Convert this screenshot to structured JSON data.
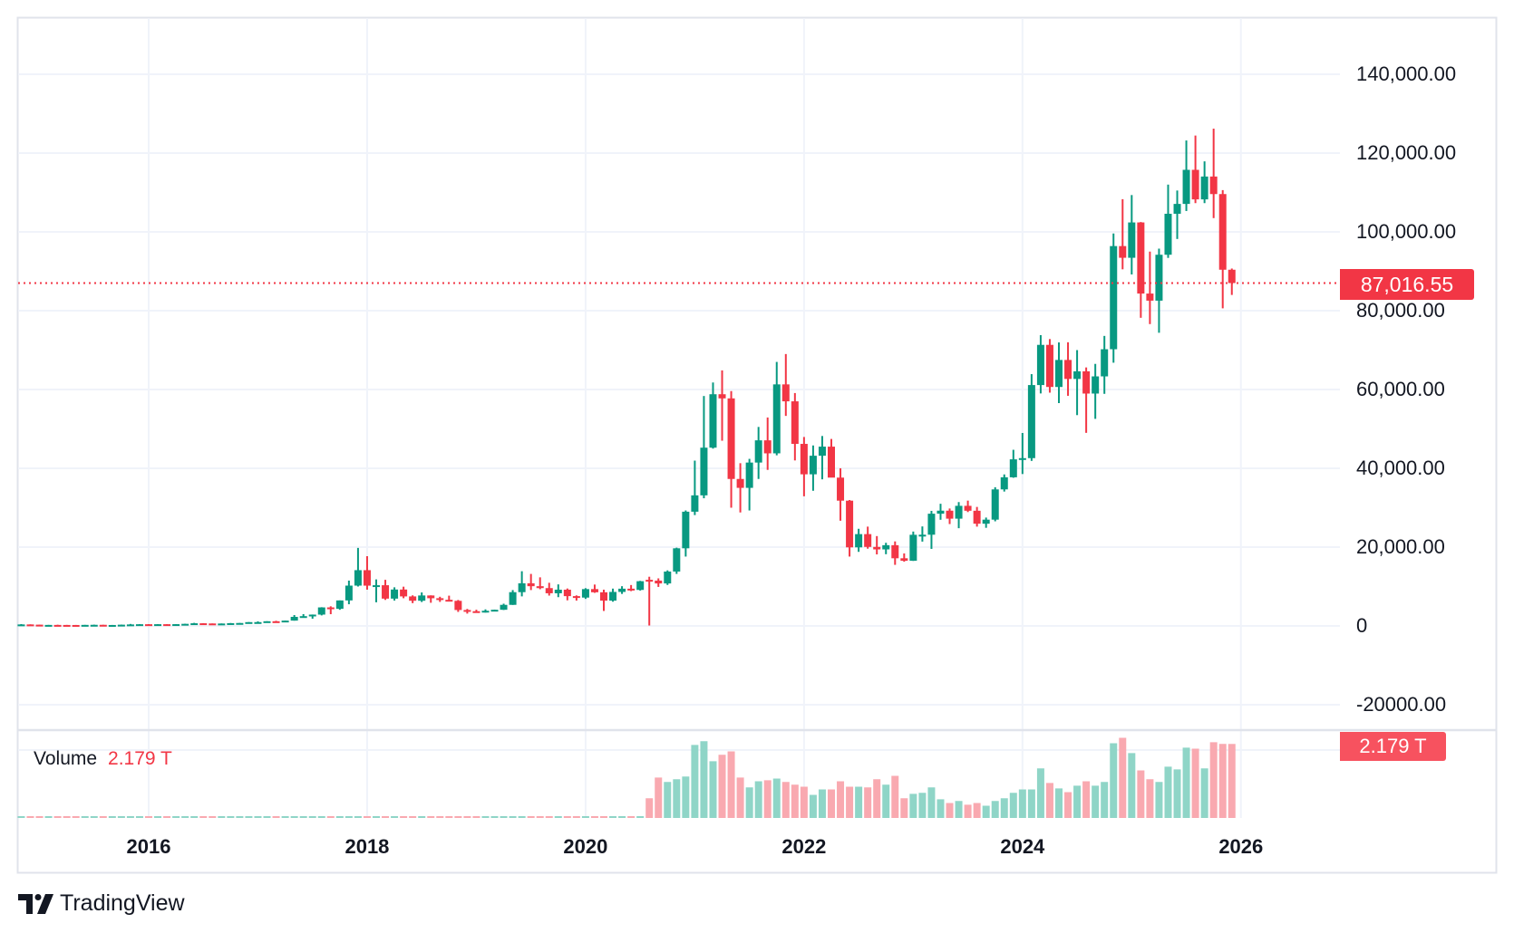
{
  "chart_data": {
    "type": "candlestick",
    "interval": "monthly",
    "start_month": "2014-11",
    "ohlc": [
      [
        338,
        457,
        316,
        378
      ],
      [
        378,
        400,
        310,
        320
      ],
      [
        320,
        320,
        170,
        217
      ],
      [
        217,
        265,
        212,
        254
      ],
      [
        254,
        300,
        236,
        244
      ],
      [
        244,
        261,
        214,
        236
      ],
      [
        236,
        248,
        225,
        230
      ],
      [
        230,
        267,
        220,
        263
      ],
      [
        263,
        315,
        253,
        284
      ],
      [
        284,
        285,
        200,
        230
      ],
      [
        230,
        245,
        225,
        236
      ],
      [
        236,
        335,
        235,
        314
      ],
      [
        314,
        500,
        300,
        378
      ],
      [
        378,
        465,
        350,
        430
      ],
      [
        430,
        460,
        355,
        369
      ],
      [
        369,
        446,
        366,
        437
      ],
      [
        437,
        440,
        401,
        416
      ],
      [
        416,
        468,
        412,
        448
      ],
      [
        448,
        550,
        436,
        531
      ],
      [
        531,
        780,
        525,
        673
      ],
      [
        673,
        704,
        610,
        624
      ],
      [
        624,
        627,
        535,
        575
      ],
      [
        575,
        628,
        570,
        609
      ],
      [
        609,
        740,
        605,
        700
      ],
      [
        700,
        755,
        680,
        745
      ],
      [
        745,
        980,
        740,
        964
      ],
      [
        964,
        1150,
        750,
        970
      ],
      [
        970,
        1200,
        915,
        1190
      ],
      [
        1190,
        1300,
        890,
        1080
      ],
      [
        1080,
        1350,
        1060,
        1348
      ],
      [
        1348,
        2760,
        1340,
        2300
      ],
      [
        2300,
        3000,
        2100,
        2480
      ],
      [
        2480,
        2900,
        1830,
        2875
      ],
      [
        2875,
        4750,
        2670,
        4700
      ],
      [
        4700,
        4980,
        2980,
        4340
      ],
      [
        4340,
        6470,
        4100,
        6470
      ],
      [
        6470,
        11500,
        5500,
        10230
      ],
      [
        10230,
        19800,
        10000,
        14150
      ],
      [
        14150,
        17700,
        9200,
        10220
      ],
      [
        10220,
        11800,
        6000,
        10330
      ],
      [
        10330,
        11700,
        6600,
        6930
      ],
      [
        6930,
        9800,
        6430,
        9240
      ],
      [
        9240,
        9960,
        7030,
        7490
      ],
      [
        7490,
        7760,
        5780,
        6390
      ],
      [
        6390,
        8500,
        6070,
        7730
      ],
      [
        7730,
        7760,
        5880,
        7030
      ],
      [
        7030,
        7400,
        6100,
        6630
      ],
      [
        6630,
        7680,
        6200,
        6370
      ],
      [
        6370,
        6580,
        3560,
        4040
      ],
      [
        4040,
        4310,
        3130,
        3740
      ],
      [
        3740,
        4110,
        3400,
        3460
      ],
      [
        3460,
        4200,
        3390,
        3850
      ],
      [
        3850,
        4140,
        3730,
        4100
      ],
      [
        4100,
        5640,
        4050,
        5350
      ],
      [
        5350,
        9100,
        5330,
        8570
      ],
      [
        8570,
        13880,
        7500,
        10820
      ],
      [
        10820,
        13200,
        9100,
        10080
      ],
      [
        10080,
        12330,
        9320,
        9600
      ],
      [
        9600,
        10950,
        7700,
        8290
      ],
      [
        8290,
        10540,
        7300,
        9200
      ],
      [
        9200,
        9500,
        6500,
        7560
      ],
      [
        7560,
        7750,
        6430,
        7190
      ],
      [
        7190,
        9580,
        6860,
        9350
      ],
      [
        9350,
        10500,
        8400,
        8540
      ],
      [
        8540,
        9200,
        3800,
        6420
      ],
      [
        6420,
        9470,
        6150,
        8630
      ],
      [
        8630,
        10080,
        8120,
        9450
      ],
      [
        9450,
        10380,
        8830,
        9140
      ],
      [
        9140,
        11440,
        8980,
        11350
      ],
      [
        11700,
        12480,
        100,
        11500
      ],
      [
        11500,
        12070,
        9900,
        10780
      ],
      [
        10780,
        14100,
        10400,
        13800
      ],
      [
        13800,
        19860,
        13200,
        19700
      ],
      [
        19700,
        29300,
        17600,
        28990
      ],
      [
        28990,
        41950,
        28130,
        33140
      ],
      [
        33140,
        58350,
        32400,
        45240
      ],
      [
        45240,
        61780,
        45000,
        58800
      ],
      [
        58800,
        64850,
        47000,
        57750
      ],
      [
        57750,
        59600,
        30000,
        37300
      ],
      [
        37300,
        41300,
        28800,
        35040
      ],
      [
        35040,
        42400,
        29300,
        41460
      ],
      [
        41460,
        50500,
        37300,
        47100
      ],
      [
        47100,
        52900,
        39600,
        43800
      ],
      [
        43800,
        67000,
        43300,
        61300
      ],
      [
        61300,
        69000,
        53300,
        57000
      ],
      [
        57000,
        59100,
        42000,
        46200
      ],
      [
        46200,
        47950,
        32900,
        38480
      ],
      [
        38480,
        45800,
        34300,
        43190
      ],
      [
        43190,
        48200,
        37200,
        45500
      ],
      [
        45500,
        47450,
        37700,
        37640
      ],
      [
        37640,
        40000,
        26700,
        31790
      ],
      [
        31790,
        31950,
        17600,
        19940
      ],
      [
        19940,
        24650,
        18800,
        23300
      ],
      [
        23300,
        25200,
        19600,
        20050
      ],
      [
        20050,
        22800,
        18150,
        19420
      ],
      [
        19420,
        21100,
        18200,
        20490
      ],
      [
        20490,
        21450,
        15500,
        17170
      ],
      [
        17170,
        18400,
        16300,
        16540
      ],
      [
        16540,
        23950,
        16500,
        23130
      ],
      [
        23130,
        25250,
        21400,
        23150
      ],
      [
        23150,
        29200,
        19550,
        28480
      ],
      [
        28480,
        31000,
        26940,
        29250
      ],
      [
        29250,
        29800,
        25850,
        27220
      ],
      [
        27220,
        31430,
        24800,
        30480
      ],
      [
        30480,
        31800,
        28900,
        29230
      ],
      [
        29230,
        30200,
        25200,
        25940
      ],
      [
        25940,
        27500,
        24900,
        26970
      ],
      [
        26970,
        35200,
        26550,
        34650
      ],
      [
        34650,
        38450,
        34100,
        37720
      ],
      [
        37720,
        44700,
        37600,
        42280
      ],
      [
        42280,
        48970,
        38550,
        42580
      ],
      [
        42580,
        63900,
        41880,
        61130
      ],
      [
        61130,
        73800,
        59000,
        71330
      ],
      [
        71330,
        72800,
        59200,
        60640
      ],
      [
        60640,
        71950,
        56550,
        67500
      ],
      [
        67500,
        71990,
        58400,
        62680
      ],
      [
        62680,
        70000,
        53500,
        64620
      ],
      [
        64620,
        65600,
        49000,
        58970
      ],
      [
        58970,
        66500,
        52550,
        63330
      ],
      [
        63330,
        73600,
        58900,
        70220
      ],
      [
        70220,
        99600,
        66800,
        96400
      ],
      [
        96400,
        108300,
        90500,
        93430
      ],
      [
        93430,
        109350,
        89200,
        102400
      ],
      [
        102400,
        102500,
        78200,
        84350
      ],
      [
        84350,
        95000,
        76600,
        82550
      ],
      [
        82550,
        95750,
        74400,
        94200
      ],
      [
        94200,
        112000,
        93400,
        104600
      ],
      [
        104600,
        110500,
        98200,
        107100
      ],
      [
        107100,
        123200,
        105300,
        115750
      ],
      [
        115750,
        124450,
        107300,
        108250
      ],
      [
        108250,
        117900,
        107300,
        114050
      ],
      [
        114050,
        126200,
        103500,
        109600
      ],
      [
        109600,
        110600,
        80600,
        90400
      ],
      [
        90400,
        90700,
        84000,
        87016.55
      ]
    ],
    "volume_T": [
      0.02,
      0.02,
      0.02,
      0.02,
      0.02,
      0.02,
      0.02,
      0.02,
      0.02,
      0.02,
      0.02,
      0.02,
      0.02,
      0.02,
      0.02,
      0.02,
      0.02,
      0.02,
      0.02,
      0.02,
      0.02,
      0.02,
      0.02,
      0.02,
      0.02,
      0.02,
      0.02,
      0.02,
      0.02,
      0.02,
      0.02,
      0.02,
      0.02,
      0.02,
      0.02,
      0.02,
      0.02,
      0.02,
      0.02,
      0.02,
      0.02,
      0.02,
      0.02,
      0.02,
      0.02,
      0.02,
      0.02,
      0.02,
      0.02,
      0.02,
      0.02,
      0.02,
      0.02,
      0.02,
      0.02,
      0.02,
      0.02,
      0.02,
      0.02,
      0.02,
      0.02,
      0.02,
      0.02,
      0.02,
      0.02,
      0.02,
      0.02,
      0.02,
      0.04,
      0.58,
      1.19,
      1.06,
      1.14,
      1.22,
      2.15,
      2.26,
      1.67,
      1.86,
      1.96,
      1.19,
      0.9,
      1.08,
      1.11,
      1.16,
      1.06,
      0.98,
      0.92,
      0.68,
      0.84,
      0.84,
      1.08,
      0.92,
      0.92,
      0.9,
      1.14,
      0.98,
      1.24,
      0.58,
      0.71,
      0.74,
      0.9,
      0.55,
      0.44,
      0.5,
      0.39,
      0.44,
      0.36,
      0.5,
      0.58,
      0.74,
      0.84,
      0.84,
      1.46,
      1.03,
      0.87,
      0.76,
      0.95,
      1.08,
      0.95,
      1.06,
      2.2,
      2.36,
      1.91,
      1.4,
      1.14,
      1.06,
      1.51,
      1.43,
      2.07,
      2.04,
      1.46,
      2.23,
      2.18,
      2.179
    ],
    "y_axis": {
      "range": [
        -20000,
        160000
      ],
      "ticks": [
        140000,
        120000,
        100000,
        80000,
        60000,
        40000,
        20000,
        0,
        -20000
      ],
      "tick_labels": [
        "140,000.00",
        "120,000.00",
        "100,000.00",
        "80,000.00",
        "60,000.00",
        "40,000.00",
        "20,000.00",
        "0",
        "-20000.00"
      ]
    },
    "x_axis": {
      "ticks": [
        "2016-01",
        "2018-01",
        "2020-01",
        "2022-01",
        "2024-01",
        "2026-01"
      ],
      "tick_labels": [
        "2016",
        "2018",
        "2020",
        "2022",
        "2024",
        "2026"
      ]
    },
    "last_price": 87016.55,
    "last_price_label": "87,016.55",
    "colors": {
      "up": "#089981",
      "down": "#f23645",
      "vol_up": "#8fd5c7",
      "vol_down": "#f9a9b0"
    }
  },
  "volume_legend": {
    "title": "Volume",
    "value": "2.179 T"
  },
  "volume_tag": "2.179 T",
  "brand": {
    "name": "TradingView"
  }
}
